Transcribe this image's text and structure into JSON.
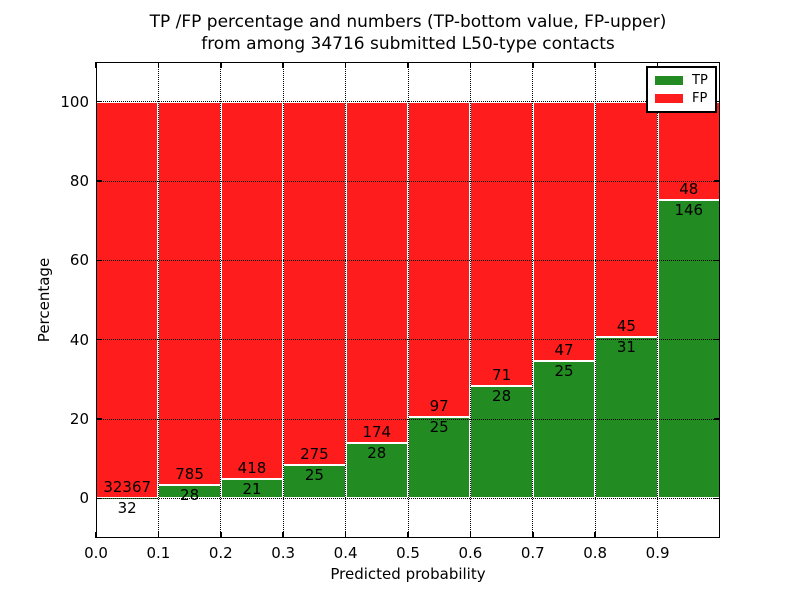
{
  "title": {
    "line1": "TP /FP percentage and numbers (TP-bottom value, FP-upper)",
    "line2": "from among 34716 submitted L50-type contacts"
  },
  "chart_data": {
    "type": "bar",
    "stacked": true,
    "normalized_to_percent": true,
    "bin_edges": [
      0.0,
      0.1,
      0.2,
      0.3,
      0.4,
      0.5,
      0.6,
      0.7,
      0.8,
      0.9,
      1.0
    ],
    "series": [
      {
        "name": "TP",
        "color": "#228b22",
        "counts": [
          32,
          28,
          21,
          25,
          28,
          25,
          28,
          25,
          31,
          146
        ]
      },
      {
        "name": "FP",
        "color": "#ff1c1c",
        "counts": [
          32367,
          785,
          418,
          275,
          174,
          97,
          71,
          47,
          45,
          48
        ]
      }
    ],
    "tp_percent": [
      0.1,
      3.44,
      4.78,
      8.33,
      13.86,
      20.49,
      28.28,
      34.72,
      40.79,
      75.26
    ],
    "total_contacts": 34716,
    "xlabel": "Predicted probability",
    "ylabel": "Percentage",
    "xtick_labels": [
      "0.0",
      "0.1",
      "0.2",
      "0.3",
      "0.4",
      "0.5",
      "0.6",
      "0.7",
      "0.8",
      "0.9"
    ],
    "ytick_values": [
      0,
      20,
      40,
      60,
      80,
      100
    ],
    "ytick_labels": [
      "0",
      "20",
      "40",
      "60",
      "80",
      "100"
    ],
    "xlim": [
      0.0,
      1.0
    ],
    "ylim": [
      -10,
      110
    ],
    "grid": "dotted",
    "bar_edge_color": "#ffffff",
    "background": "#ffffff",
    "legend": {
      "position": "upper right",
      "entries": [
        {
          "label": "TP",
          "color": "#228b22"
        },
        {
          "label": "FP",
          "color": "#ff1c1c"
        }
      ]
    }
  }
}
